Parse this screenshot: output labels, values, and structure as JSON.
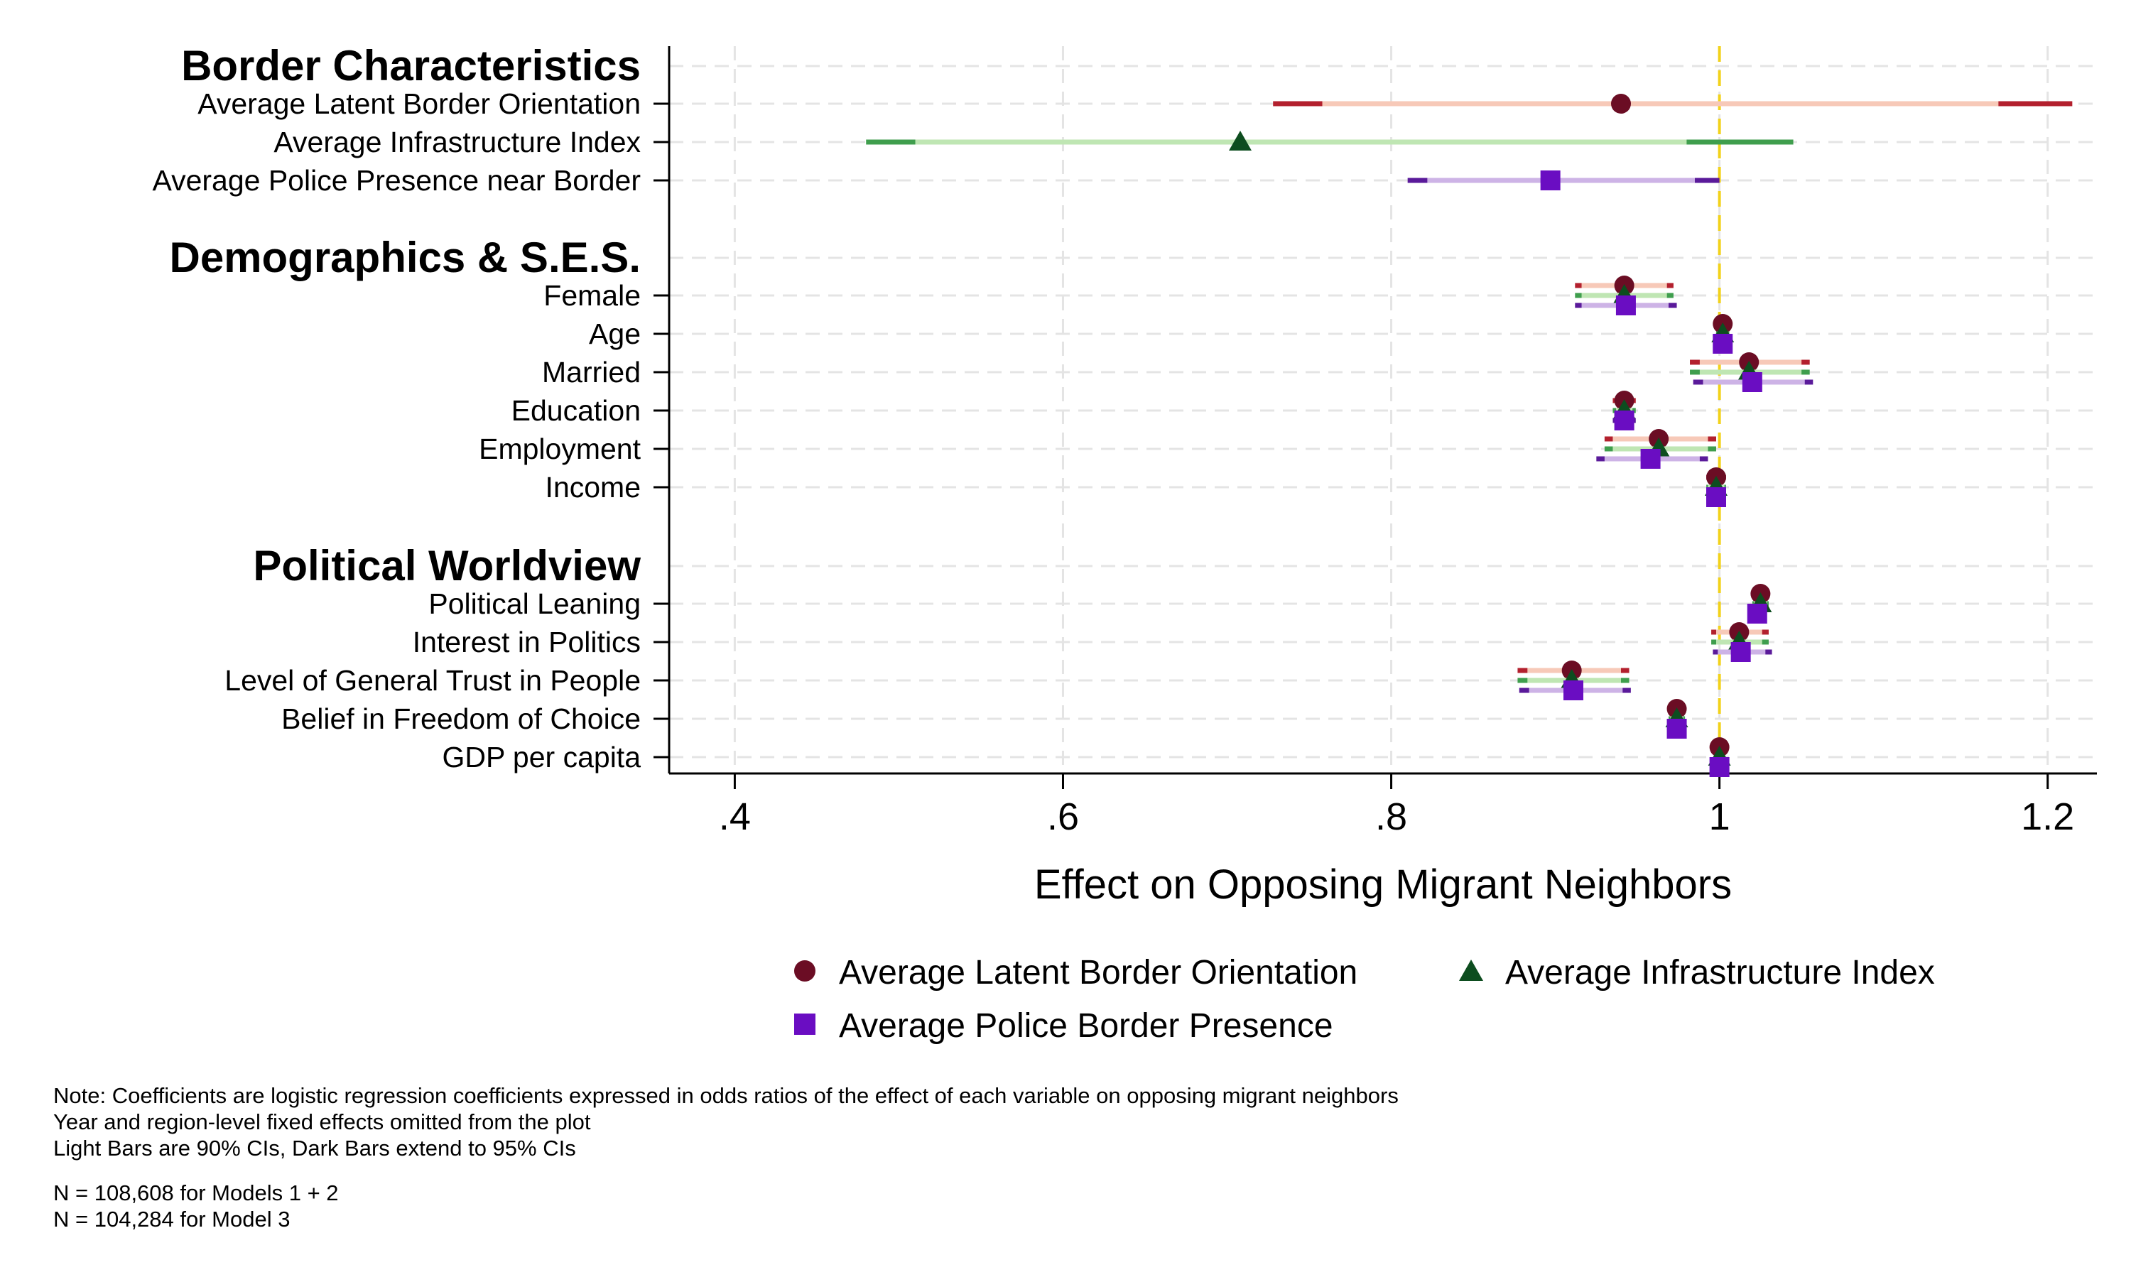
{
  "chart_data": {
    "type": "coefficient-plot",
    "xlabel": "Effect on Opposing Migrant Neighbors",
    "xlim": [
      0.36,
      1.23
    ],
    "xticks": [
      0.4,
      0.6,
      0.8,
      1.0,
      1.2
    ],
    "xtick_labels": [
      ".4",
      ".6",
      ".8",
      "1",
      "1.2"
    ],
    "reference_line": 1,
    "grid": true,
    "legend_position": "bottom",
    "groups": [
      {
        "title": "Border Characteristics",
        "variables": [
          "Average Latent Border Orientation",
          "Average Infrastructure Index",
          "Average Police Presence near Border"
        ]
      },
      {
        "title": "Demographics & S.E.S.",
        "variables": [
          "Female",
          "Age",
          "Married",
          "Education",
          "Employment",
          "Income"
        ]
      },
      {
        "title": "Political Worldview",
        "variables": [
          "Political Leaning",
          "Interest in Politics",
          "Level of General Trust in People",
          "Belief in Freedom of Choice",
          "GDP per capita"
        ]
      }
    ],
    "series": [
      {
        "name": "Average Latent Border Orientation",
        "marker": "circle",
        "color": "#6b0d24",
        "ci90_color": "#f7c9b8",
        "ci95_color": "#b3202e",
        "points": [
          {
            "variable": "Average Latent Border Orientation",
            "estimate": 0.94,
            "ci90": [
              0.758,
              1.17
            ],
            "ci95": [
              0.728,
              1.215
            ]
          },
          {
            "variable": "Female",
            "estimate": 0.942,
            "ci90": [
              0.916,
              0.968
            ],
            "ci95": [
              0.912,
              0.972
            ]
          },
          {
            "variable": "Age",
            "estimate": 1.002,
            "ci90": [
              0.999,
              1.005
            ],
            "ci95": [
              0.998,
              1.006
            ]
          },
          {
            "variable": "Married",
            "estimate": 1.018,
            "ci90": [
              0.988,
              1.05
            ],
            "ci95": [
              0.982,
              1.055
            ]
          },
          {
            "variable": "Education",
            "estimate": 0.942,
            "ci90": [
              0.937,
              0.947
            ],
            "ci95": [
              0.935,
              0.949
            ]
          },
          {
            "variable": "Employment",
            "estimate": 0.963,
            "ci90": [
              0.935,
              0.993
            ],
            "ci95": [
              0.93,
              0.998
            ]
          },
          {
            "variable": "Income",
            "estimate": 0.998,
            "ci90": [
              0.993,
              1.003
            ],
            "ci95": [
              0.992,
              1.004
            ]
          },
          {
            "variable": "Political Leaning",
            "estimate": 1.025,
            "ci90": [
              1.021,
              1.029
            ],
            "ci95": [
              1.02,
              1.03
            ]
          },
          {
            "variable": "Interest in Politics",
            "estimate": 1.012,
            "ci90": [
              0.998,
              1.026
            ],
            "ci95": [
              0.995,
              1.03
            ]
          },
          {
            "variable": "Level of General Trust in People",
            "estimate": 0.91,
            "ci90": [
              0.883,
              0.94
            ],
            "ci95": [
              0.877,
              0.945
            ]
          },
          {
            "variable": "Belief in Freedom of Choice",
            "estimate": 0.974,
            "ci90": [
              0.97,
              0.978
            ],
            "ci95": [
              0.969,
              0.979
            ]
          },
          {
            "variable": "GDP per capita",
            "estimate": 1.0,
            "ci90": [
              0.9985,
              1.0015
            ],
            "ci95": [
              0.998,
              1.002
            ]
          }
        ]
      },
      {
        "name": "Average Infrastructure Index",
        "marker": "triangle",
        "color": "#0d4d1f",
        "ci90_color": "#bfe6b3",
        "ci95_color": "#3f9e4d",
        "points": [
          {
            "variable": "Average Infrastructure Index",
            "estimate": 0.708,
            "ci90": [
              0.51,
              0.98
            ],
            "ci95": [
              0.48,
              1.045
            ]
          },
          {
            "variable": "Female",
            "estimate": 0.942,
            "ci90": [
              0.916,
              0.968
            ],
            "ci95": [
              0.912,
              0.972
            ]
          },
          {
            "variable": "Age",
            "estimate": 1.002,
            "ci90": [
              0.999,
              1.005
            ],
            "ci95": [
              0.998,
              1.006
            ]
          },
          {
            "variable": "Married",
            "estimate": 1.018,
            "ci90": [
              0.988,
              1.05
            ],
            "ci95": [
              0.982,
              1.055
            ]
          },
          {
            "variable": "Education",
            "estimate": 0.942,
            "ci90": [
              0.937,
              0.947
            ],
            "ci95": [
              0.935,
              0.949
            ]
          },
          {
            "variable": "Employment",
            "estimate": 0.963,
            "ci90": [
              0.935,
              0.993
            ],
            "ci95": [
              0.93,
              0.998
            ]
          },
          {
            "variable": "Income",
            "estimate": 0.998,
            "ci90": [
              0.993,
              1.003
            ],
            "ci95": [
              0.992,
              1.004
            ]
          },
          {
            "variable": "Political Leaning",
            "estimate": 1.025,
            "ci90": [
              1.021,
              1.029
            ],
            "ci95": [
              1.02,
              1.03
            ]
          },
          {
            "variable": "Interest in Politics",
            "estimate": 1.012,
            "ci90": [
              0.998,
              1.026
            ],
            "ci95": [
              0.995,
              1.03
            ]
          },
          {
            "variable": "Level of General Trust in People",
            "estimate": 0.91,
            "ci90": [
              0.883,
              0.94
            ],
            "ci95": [
              0.877,
              0.945
            ]
          },
          {
            "variable": "Belief in Freedom of Choice",
            "estimate": 0.974,
            "ci90": [
              0.97,
              0.978
            ],
            "ci95": [
              0.969,
              0.979
            ]
          },
          {
            "variable": "GDP per capita",
            "estimate": 1.0,
            "ci90": [
              0.9985,
              1.0015
            ],
            "ci95": [
              0.998,
              1.002
            ]
          }
        ]
      },
      {
        "name": "Average Police Border Presence",
        "marker": "square",
        "color": "#6a0dc2",
        "ci90_color": "#cdb3e6",
        "ci95_color": "#5a1a9a",
        "points": [
          {
            "variable": "Average Police Presence near Border",
            "estimate": 0.897,
            "ci90": [
              0.822,
              0.985
            ],
            "ci95": [
              0.81,
              1.0
            ]
          },
          {
            "variable": "Female",
            "estimate": 0.943,
            "ci90": [
              0.916,
              0.969
            ],
            "ci95": [
              0.912,
              0.974
            ]
          },
          {
            "variable": "Age",
            "estimate": 1.002,
            "ci90": [
              0.999,
              1.005
            ],
            "ci95": [
              0.998,
              1.006
            ]
          },
          {
            "variable": "Married",
            "estimate": 1.02,
            "ci90": [
              0.99,
              1.052
            ],
            "ci95": [
              0.984,
              1.057
            ]
          },
          {
            "variable": "Education",
            "estimate": 0.942,
            "ci90": [
              0.937,
              0.947
            ],
            "ci95": [
              0.935,
              0.949
            ]
          },
          {
            "variable": "Employment",
            "estimate": 0.958,
            "ci90": [
              0.93,
              0.988
            ],
            "ci95": [
              0.925,
              0.993
            ]
          },
          {
            "variable": "Income",
            "estimate": 0.998,
            "ci90": [
              0.993,
              1.003
            ],
            "ci95": [
              0.992,
              1.004
            ]
          },
          {
            "variable": "Political Leaning",
            "estimate": 1.023,
            "ci90": [
              1.019,
              1.027
            ],
            "ci95": [
              1.018,
              1.028
            ]
          },
          {
            "variable": "Interest in Politics",
            "estimate": 1.013,
            "ci90": [
              0.999,
              1.028
            ],
            "ci95": [
              0.996,
              1.032
            ]
          },
          {
            "variable": "Level of General Trust in People",
            "estimate": 0.911,
            "ci90": [
              0.884,
              0.941
            ],
            "ci95": [
              0.878,
              0.946
            ]
          },
          {
            "variable": "Belief in Freedom of Choice",
            "estimate": 0.974,
            "ci90": [
              0.97,
              0.978
            ],
            "ci95": [
              0.969,
              0.979
            ]
          },
          {
            "variable": "GDP per capita",
            "estimate": 1.0,
            "ci90": [
              0.9985,
              1.0015
            ],
            "ci95": [
              0.998,
              1.002
            ]
          }
        ]
      }
    ],
    "notes": [
      "Note: Coefficients are logistic regression coefficients expressed in odds ratios of the effect of each variable on opposing migrant neighbors",
      "Year and region-level fixed effects omitted from the plot",
      "Light Bars are 90% CIs, Dark Bars extend to 95% CIs",
      "N = 108,608 for Models 1 + 2",
      "N = 104,284 for Model 3"
    ]
  }
}
